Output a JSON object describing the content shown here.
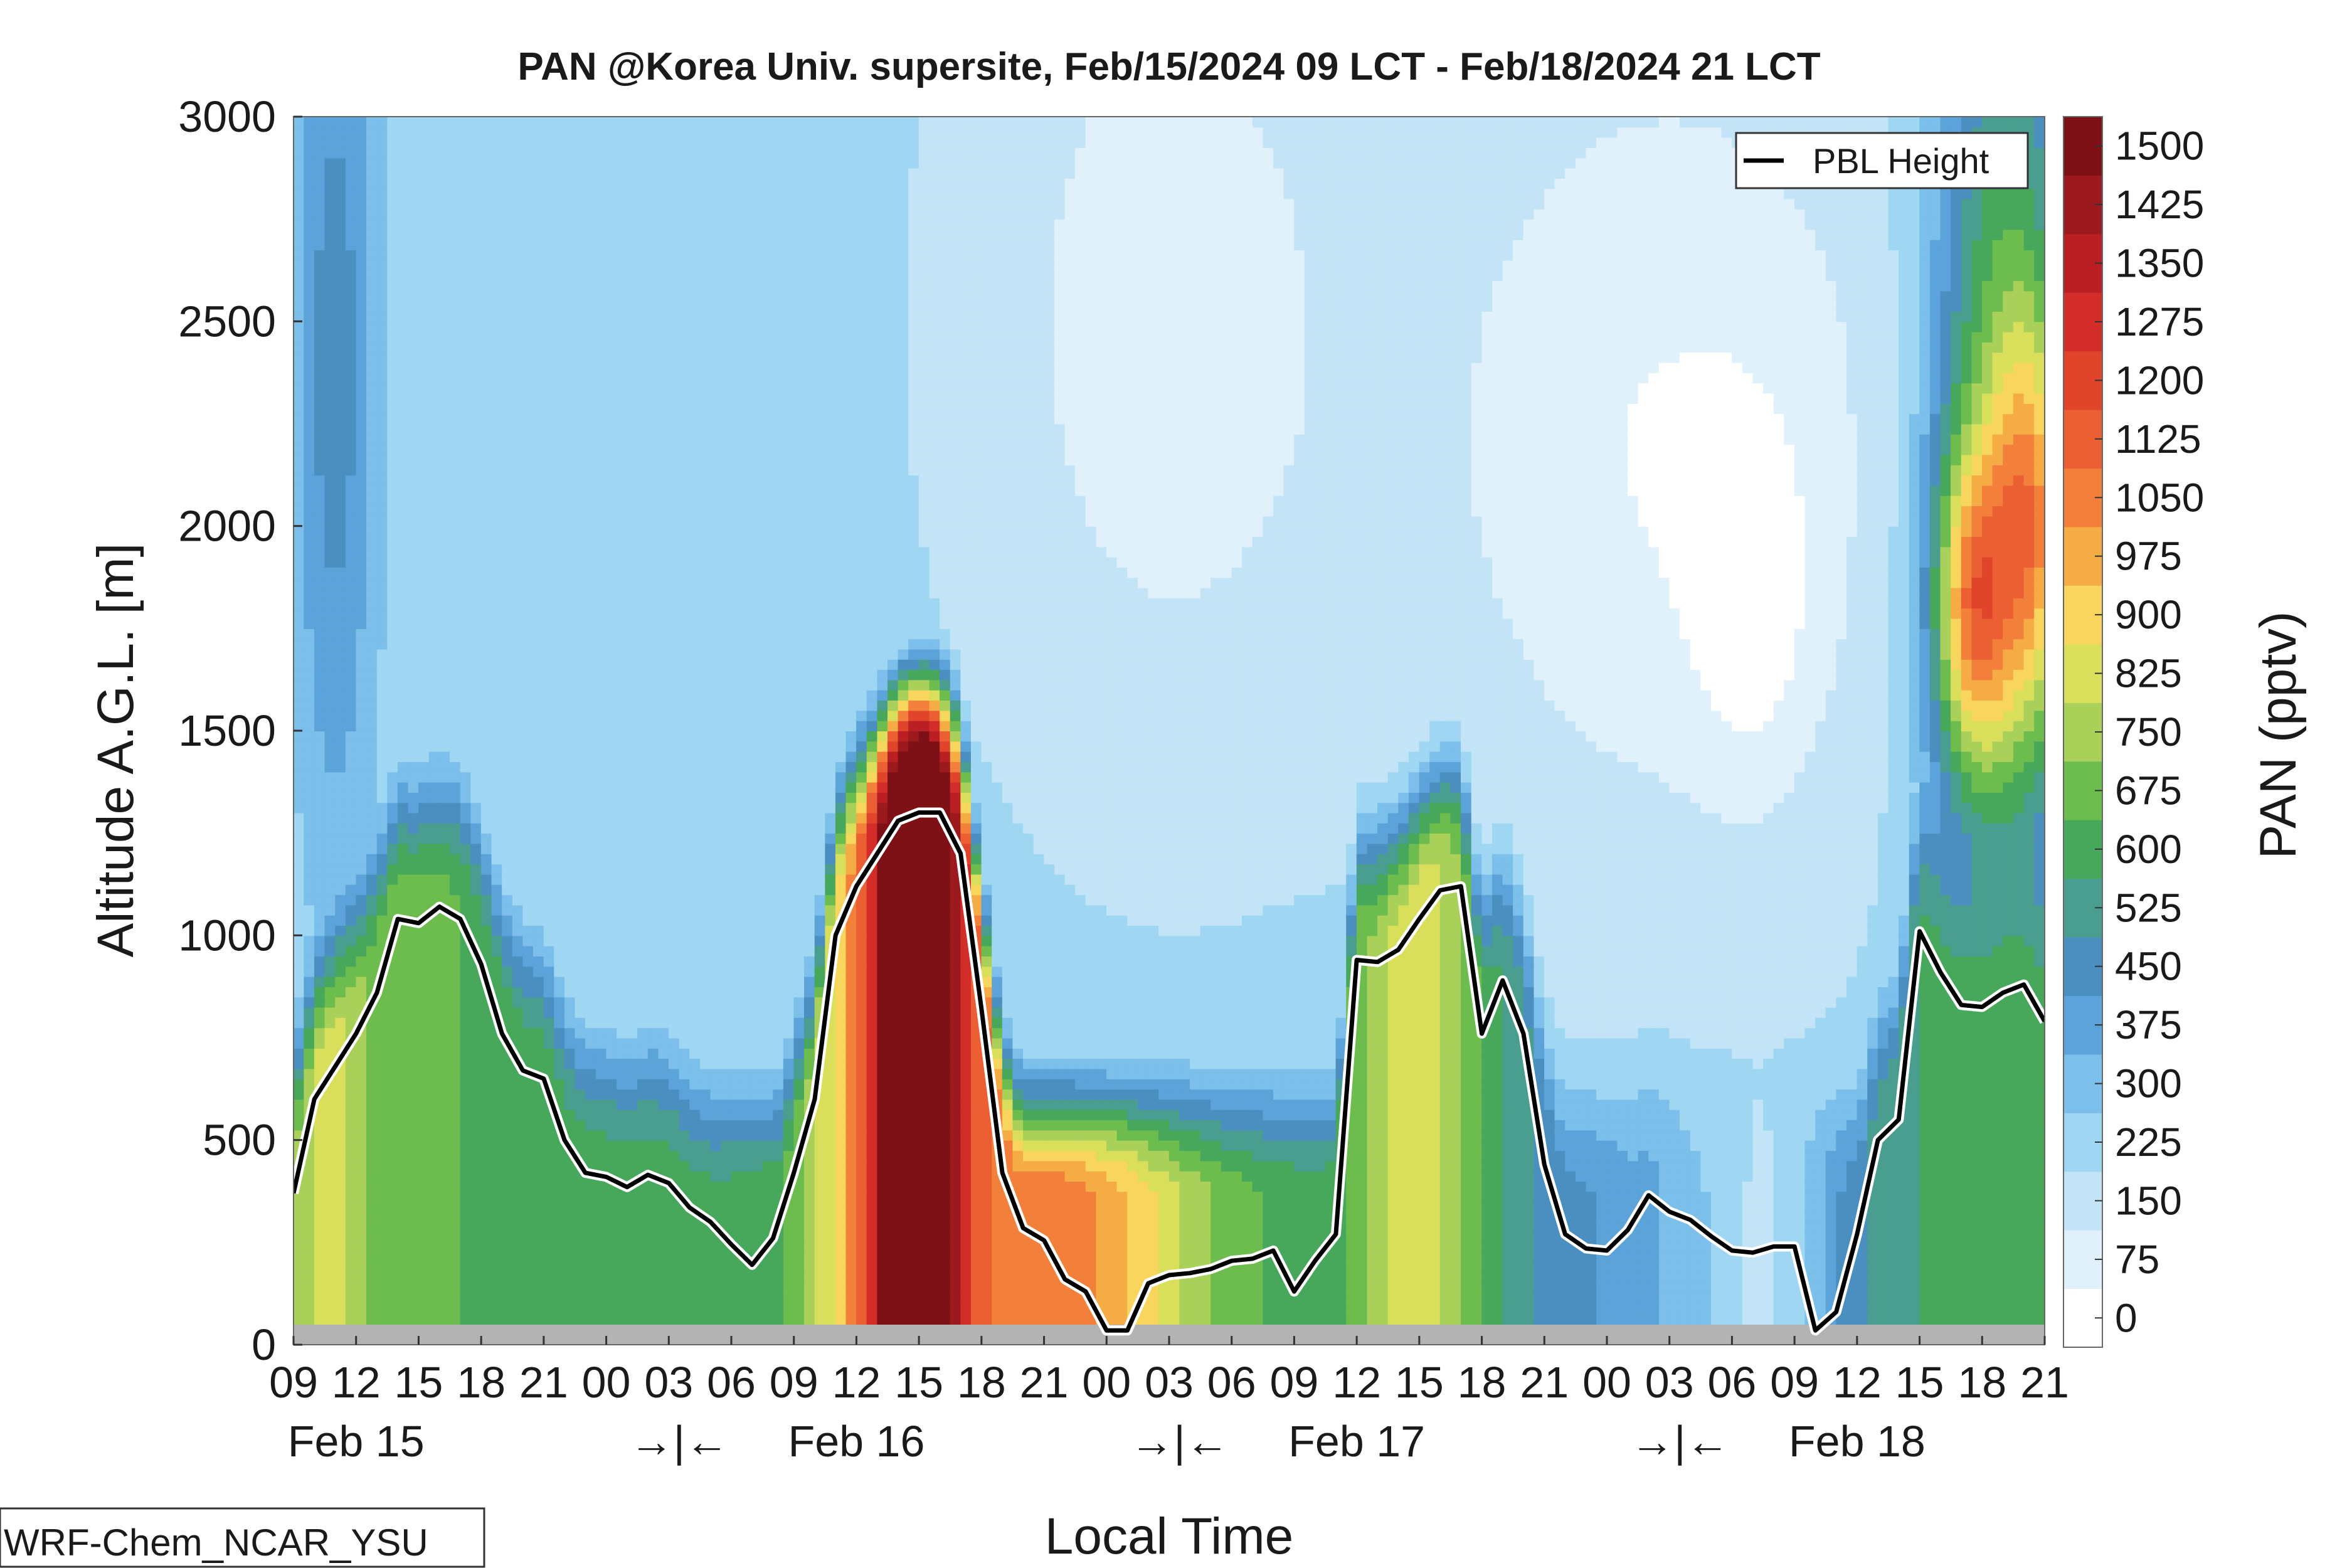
{
  "chart_data": {
    "type": "heatmap",
    "title": "PAN @Korea Univ. supersite, Feb/15/2024 09 LCT - Feb/18/2024 21 LCT",
    "xlabel": "Local Time",
    "ylabel": "Altitude A.G.L. [m]",
    "colorbar_label": "PAN (pptv)",
    "model_label": "WRF-Chem_NCAR_YSU",
    "legend": {
      "label": "PBL Height",
      "position": "top-right"
    },
    "ylim": [
      0,
      3000
    ],
    "yticks": [
      0,
      500,
      1000,
      1500,
      2000,
      2500,
      3000
    ],
    "x_hours": [
      0,
      84
    ],
    "xticks": {
      "hours": [
        0,
        3,
        6,
        9,
        12,
        15,
        18,
        21,
        24,
        27,
        30,
        33,
        36,
        39,
        42,
        45,
        48,
        51,
        54,
        57,
        60,
        63,
        66,
        69,
        72,
        75,
        78,
        81,
        84
      ],
      "labels": [
        "09",
        "12",
        "15",
        "18",
        "21",
        "00",
        "03",
        "06",
        "09",
        "12",
        "15",
        "18",
        "21",
        "00",
        "03",
        "06",
        "09",
        "12",
        "15",
        "18",
        "21",
        "00",
        "03",
        "06",
        "09",
        "12",
        "15",
        "18",
        "21"
      ]
    },
    "day_labels": [
      {
        "hour": 3,
        "label": "Feb 15"
      },
      {
        "hour": 18.5,
        "label": "→|←"
      },
      {
        "hour": 27,
        "label": "Feb 16"
      },
      {
        "hour": 42.5,
        "label": "→|←"
      },
      {
        "hour": 51,
        "label": "Feb 17"
      },
      {
        "hour": 66.5,
        "label": "→|←"
      },
      {
        "hour": 75,
        "label": "Feb 18"
      }
    ],
    "colorbar": {
      "levels": [
        0,
        75,
        150,
        225,
        300,
        375,
        450,
        525,
        600,
        675,
        750,
        825,
        900,
        975,
        1050,
        1125,
        1200,
        1275,
        1350,
        1425,
        1500
      ],
      "colors": [
        "#ffffff",
        "#e1f1fb",
        "#c2e4f6",
        "#9fd6f2",
        "#7bbfea",
        "#5ba3d8",
        "#4a8fc0",
        "#4a9e8f",
        "#47a85c",
        "#6cbd4d",
        "#a9d15a",
        "#d9df5a",
        "#f8d55c",
        "#f5ac45",
        "#f2803a",
        "#eb5f32",
        "#e0452c",
        "#d32d2a",
        "#b91f23",
        "#9c1a1e",
        "#7e1115"
      ]
    },
    "pbl_height": {
      "hours": [
        0,
        1,
        2,
        3,
        4,
        5,
        6,
        7,
        8,
        9,
        10,
        11,
        12,
        13,
        14,
        15,
        16,
        17,
        18,
        19,
        20,
        21,
        22,
        23,
        24,
        25,
        26,
        27,
        28,
        29,
        30,
        31,
        32,
        33,
        34,
        35,
        36,
        37,
        38,
        39,
        40,
        41,
        42,
        43,
        44,
        45,
        46,
        47,
        48,
        49,
        50,
        51,
        52,
        53,
        54,
        55,
        56,
        57,
        58,
        59,
        60,
        61,
        62,
        63,
        64,
        65,
        66,
        67,
        68,
        69,
        70,
        71,
        72,
        73,
        74,
        75,
        76,
        77,
        78,
        79,
        80,
        81,
        82,
        83,
        84
      ],
      "values": [
        370,
        600,
        680,
        760,
        860,
        1040,
        1030,
        1070,
        1040,
        930,
        760,
        670,
        650,
        500,
        420,
        410,
        385,
        415,
        395,
        335,
        300,
        245,
        195,
        260,
        420,
        600,
        1000,
        1120,
        1200,
        1280,
        1300,
        1300,
        1200,
        820,
        420,
        285,
        255,
        160,
        130,
        35,
        35,
        150,
        170,
        175,
        185,
        205,
        210,
        230,
        130,
        205,
        270,
        940,
        935,
        965,
        1040,
        1110,
        1120,
        760,
        890,
        760,
        440,
        270,
        235,
        230,
        280,
        365,
        325,
        305,
        265,
        230,
        225,
        240,
        240,
        35,
        80,
        270,
        500,
        550,
        1010,
        910,
        830,
        825,
        860,
        880,
        790
      ]
    }
  }
}
